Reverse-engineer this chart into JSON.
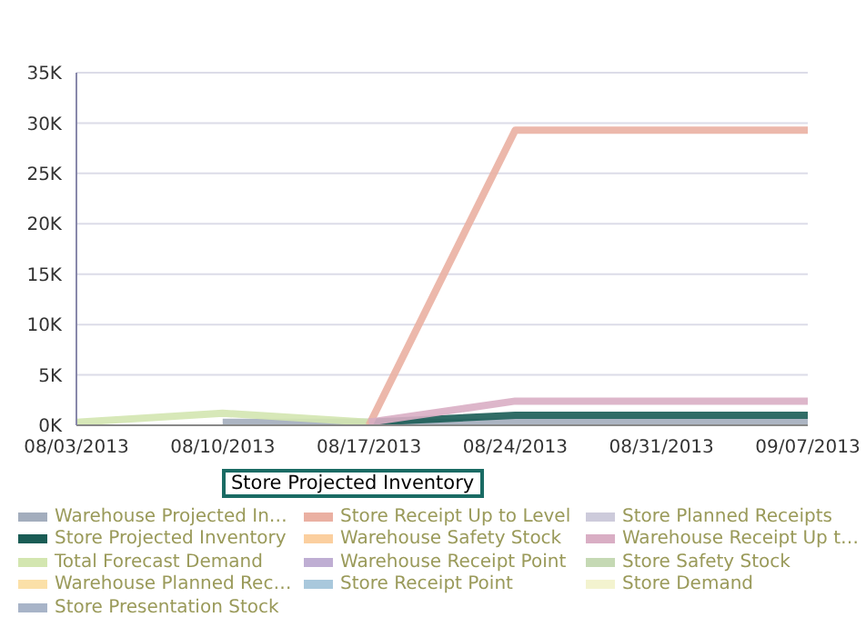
{
  "chart_data": {
    "type": "line",
    "categories": [
      "08/03/2013",
      "08/10/2013",
      "08/17/2013",
      "08/24/2013",
      "08/31/2013",
      "09/07/2013"
    ],
    "ylim": [
      0,
      35000
    ],
    "yticks": [
      {
        "value": 0,
        "label": "0K"
      },
      {
        "value": 5000,
        "label": "5K"
      },
      {
        "value": 10000,
        "label": "10K"
      },
      {
        "value": 15000,
        "label": "15K"
      },
      {
        "value": 20000,
        "label": "20K"
      },
      {
        "value": 25000,
        "label": "25K"
      },
      {
        "value": 30000,
        "label": "30K"
      },
      {
        "value": 35000,
        "label": "35K"
      }
    ],
    "grid": "y",
    "legend": "bottom",
    "marker": "none",
    "line_style": "solid",
    "annotations": [
      "Store Projected Inventory"
    ],
    "series": [
      {
        "name": "Warehouse Projected In…",
        "color": "#a3adbd",
        "values": [
          null,
          300,
          300,
          300,
          300,
          300
        ]
      },
      {
        "name": "Store Projected Inventory",
        "color": "#1a5c55",
        "values": [
          null,
          null,
          300,
          1000,
          1000,
          1000
        ]
      },
      {
        "name": "Total Forecast Demand",
        "color": "#d3e6b0",
        "values": [
          300,
          1200,
          300,
          null,
          null,
          null
        ]
      },
      {
        "name": "Warehouse Planned Rec…",
        "color": "#fbe0a8",
        "values": [
          null,
          null,
          null,
          null,
          null,
          null
        ]
      },
      {
        "name": "Store Presentation Stock",
        "color": "#a8b4c8",
        "values": [
          null,
          null,
          null,
          null,
          null,
          null
        ]
      },
      {
        "name": "Store Receipt Up to Level",
        "color": "#eab0a2",
        "values": [
          null,
          null,
          0,
          29300,
          29300,
          29300
        ]
      },
      {
        "name": "Warehouse Safety Stock",
        "color": "#fbcf9f",
        "values": [
          null,
          null,
          null,
          null,
          null,
          null
        ]
      },
      {
        "name": "Warehouse Receipt Point",
        "color": "#bfaed3",
        "values": [
          null,
          null,
          null,
          null,
          null,
          null
        ]
      },
      {
        "name": "Store Receipt Point",
        "color": "#a9c8dc",
        "values": [
          null,
          null,
          null,
          null,
          null,
          null
        ]
      },
      {
        "name": "Store Planned Receipts",
        "color": "#cdcbdb",
        "values": [
          null,
          null,
          null,
          null,
          null,
          null
        ]
      },
      {
        "name": "Warehouse Receipt Up t…",
        "color": "#d9aec4",
        "values": [
          null,
          null,
          300,
          2400,
          2400,
          2400
        ]
      },
      {
        "name": "Store Safety Stock",
        "color": "#c5d9b4",
        "values": [
          null,
          null,
          null,
          null,
          null,
          null
        ]
      },
      {
        "name": "Store Demand",
        "color": "#f3f3cf",
        "values": [
          null,
          null,
          null,
          null,
          null,
          null
        ]
      }
    ]
  }
}
